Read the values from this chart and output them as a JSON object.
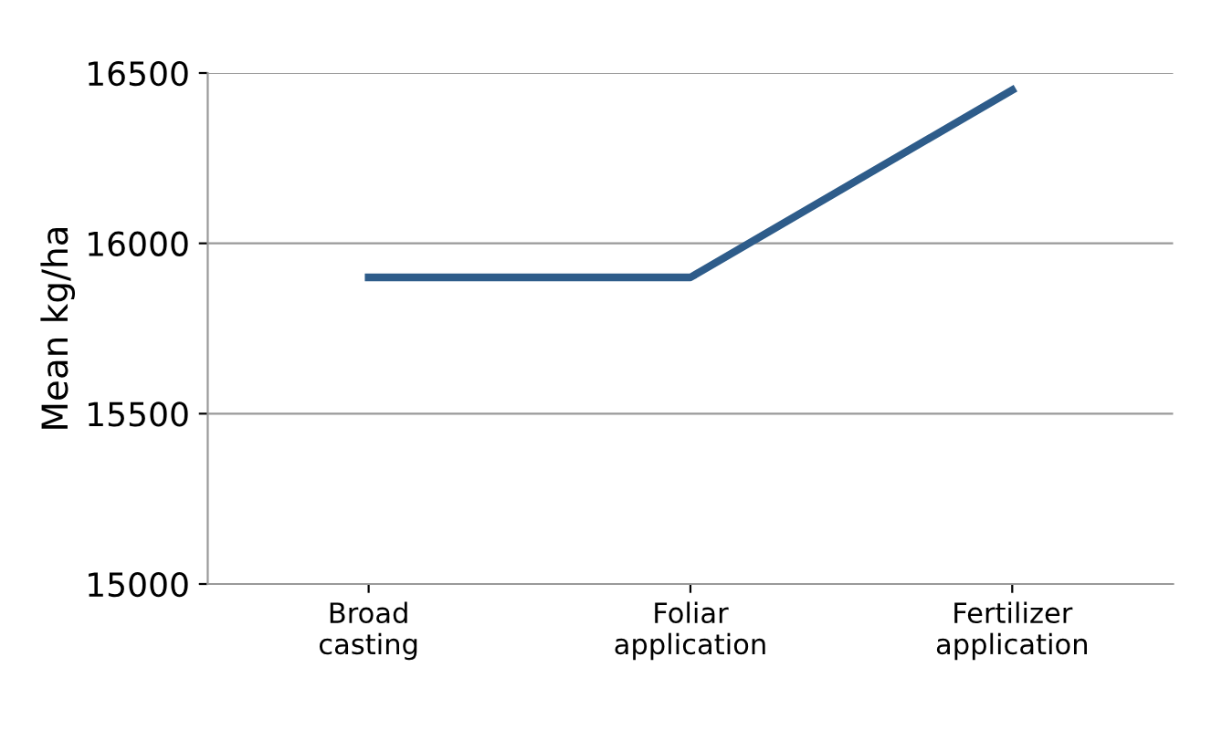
{
  "chart_data": {
    "type": "line",
    "ylabel": "Mean kg/ha",
    "categories": [
      "Broad\ncasting",
      "Foliar\napplication",
      "Fertilizer\napplication"
    ],
    "series": [
      {
        "color": "#2e5c8a",
        "values": [
          15900,
          15900,
          16450
        ]
      }
    ],
    "ylim": [
      15000,
      16500
    ],
    "yticks": [
      15000,
      15500,
      16000,
      16500
    ],
    "grid": "y",
    "legend": false,
    "marker": "none",
    "line_style": "solid"
  }
}
